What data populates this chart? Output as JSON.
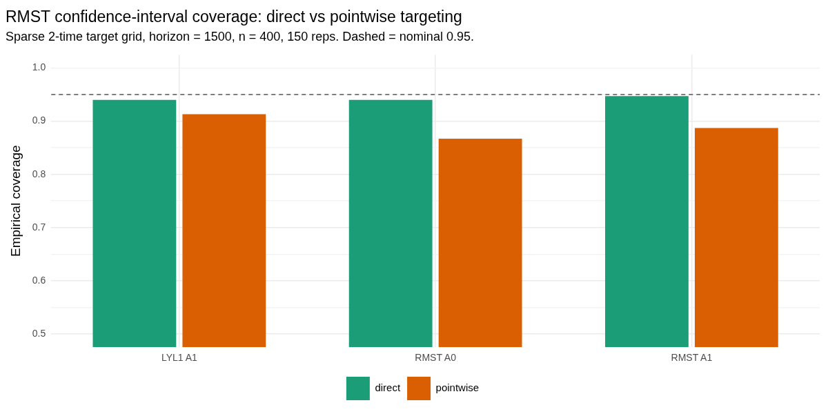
{
  "chart_data": {
    "type": "bar",
    "title": "RMST confidence-interval coverage: direct vs pointwise targeting",
    "subtitle": "Sparse 2-time target grid, horizon = 1500, n = 400, 150 reps. Dashed = nominal 0.95.",
    "ylabel": "Empirical coverage",
    "categories": [
      "LYL1 A1",
      "RMST A0",
      "RMST A1"
    ],
    "series": [
      {
        "name": "direct",
        "color": "#1b9e77",
        "values": [
          0.94,
          0.94,
          0.947
        ]
      },
      {
        "name": "pointwise",
        "color": "#d95f02",
        "values": [
          0.913,
          0.867,
          0.887
        ]
      }
    ],
    "ylim": [
      0.475,
      1.025
    ],
    "yticks": [
      0.5,
      {
        "value": 0.55,
        "label": null
      },
      0.6,
      {
        "value": 0.65,
        "label": null
      },
      0.7,
      {
        "value": 0.75,
        "label": null
      },
      0.8,
      {
        "value": 0.85,
        "label": null
      },
      0.9,
      {
        "value": 0.95,
        "label": null
      },
      {
        "value": 1.0,
        "label": "1.0"
      }
    ],
    "ref_lines": [
      {
        "axis": "y",
        "value": 0.95,
        "color": "#555555",
        "line_style": "dashed"
      }
    ],
    "grid": true,
    "legend": "bottom"
  }
}
